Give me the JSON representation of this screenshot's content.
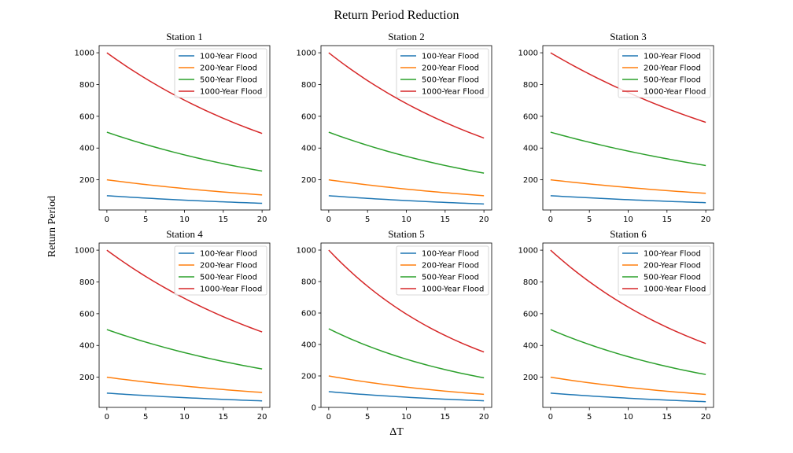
{
  "figure": {
    "title": "Return Period Reduction",
    "xlabel": "ΔT",
    "ylabel": "Return Period"
  },
  "legend_labels": [
    "100-Year Flood",
    "200-Year Flood",
    "500-Year Flood",
    "1000-Year Flood"
  ],
  "colors": [
    "#1f77b4",
    "#ff7f0e",
    "#2ca02c",
    "#d62728"
  ],
  "chart_data": [
    {
      "type": "line",
      "title": "Station 1",
      "x": [
        0,
        20
      ],
      "xticks": [
        0,
        5,
        10,
        15,
        20
      ],
      "yticks": [
        200,
        400,
        600,
        800,
        1000
      ],
      "ylim": [
        10,
        1045
      ],
      "xlim": [
        -1,
        21
      ],
      "legend_position": "top-right",
      "series": [
        {
          "name": "100-Year Flood",
          "start": 100,
          "end": 52
        },
        {
          "name": "200-Year Flood",
          "start": 200,
          "end": 105
        },
        {
          "name": "500-Year Flood",
          "start": 500,
          "end": 255
        },
        {
          "name": "1000-Year Flood",
          "start": 1000,
          "end": 492
        }
      ]
    },
    {
      "type": "line",
      "title": "Station 2",
      "x": [
        0,
        20
      ],
      "xticks": [
        0,
        5,
        10,
        15,
        20
      ],
      "yticks": [
        200,
        400,
        600,
        800,
        1000
      ],
      "ylim": [
        10,
        1045
      ],
      "xlim": [
        -1,
        21
      ],
      "legend_position": "top-right",
      "series": [
        {
          "name": "100-Year Flood",
          "start": 100,
          "end": 48
        },
        {
          "name": "200-Year Flood",
          "start": 200,
          "end": 100
        },
        {
          "name": "500-Year Flood",
          "start": 500,
          "end": 242
        },
        {
          "name": "1000-Year Flood",
          "start": 1000,
          "end": 463
        }
      ]
    },
    {
      "type": "line",
      "title": "Station 3",
      "x": [
        0,
        20
      ],
      "xticks": [
        0,
        5,
        10,
        15,
        20
      ],
      "yticks": [
        200,
        400,
        600,
        800,
        1000
      ],
      "ylim": [
        10,
        1045
      ],
      "xlim": [
        -1,
        21
      ],
      "legend_position": "top-right",
      "series": [
        {
          "name": "100-Year Flood",
          "start": 100,
          "end": 56
        },
        {
          "name": "200-Year Flood",
          "start": 200,
          "end": 115
        },
        {
          "name": "500-Year Flood",
          "start": 500,
          "end": 290
        },
        {
          "name": "1000-Year Flood",
          "start": 1000,
          "end": 562
        }
      ]
    },
    {
      "type": "line",
      "title": "Station 4",
      "x": [
        0,
        20
      ],
      "xticks": [
        0,
        5,
        10,
        15,
        20
      ],
      "yticks": [
        200,
        400,
        600,
        800,
        1000
      ],
      "ylim": [
        10,
        1045
      ],
      "xlim": [
        -1,
        21
      ],
      "legend_position": "top-right",
      "series": [
        {
          "name": "100-Year Flood",
          "start": 100,
          "end": 51
        },
        {
          "name": "200-Year Flood",
          "start": 200,
          "end": 104
        },
        {
          "name": "500-Year Flood",
          "start": 500,
          "end": 252
        },
        {
          "name": "1000-Year Flood",
          "start": 1000,
          "end": 485
        }
      ]
    },
    {
      "type": "line",
      "title": "Station 5",
      "x": [
        0,
        20
      ],
      "xticks": [
        0,
        5,
        10,
        15,
        20
      ],
      "yticks": [
        0,
        200,
        400,
        600,
        800,
        1000
      ],
      "ylim": [
        0,
        1045
      ],
      "xlim": [
        -1,
        21
      ],
      "legend_position": "top-right",
      "series": [
        {
          "name": "100-Year Flood",
          "start": 100,
          "end": 42
        },
        {
          "name": "200-Year Flood",
          "start": 200,
          "end": 83
        },
        {
          "name": "500-Year Flood",
          "start": 500,
          "end": 188
        },
        {
          "name": "1000-Year Flood",
          "start": 1000,
          "end": 352
        }
      ]
    },
    {
      "type": "line",
      "title": "Station 6",
      "x": [
        0,
        20
      ],
      "xticks": [
        0,
        5,
        10,
        15,
        20
      ],
      "yticks": [
        200,
        400,
        600,
        800,
        1000
      ],
      "ylim": [
        10,
        1045
      ],
      "xlim": [
        -1,
        21
      ],
      "legend_position": "top-right",
      "series": [
        {
          "name": "100-Year Flood",
          "start": 100,
          "end": 46
        },
        {
          "name": "200-Year Flood",
          "start": 200,
          "end": 92
        },
        {
          "name": "500-Year Flood",
          "start": 500,
          "end": 217
        },
        {
          "name": "1000-Year Flood",
          "start": 1000,
          "end": 412
        }
      ]
    }
  ]
}
